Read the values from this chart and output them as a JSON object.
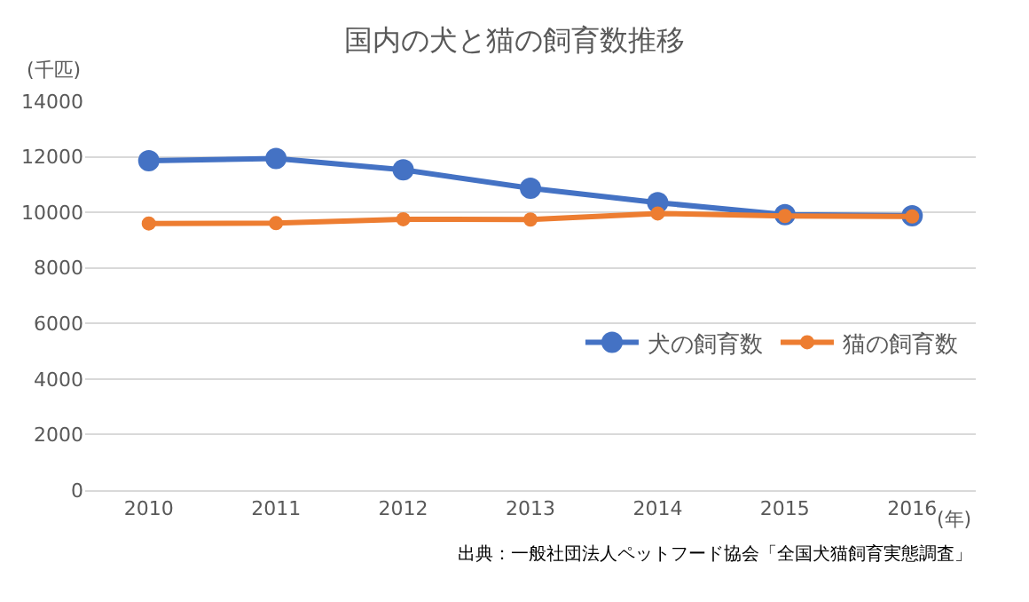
{
  "chart_data": {
    "type": "line",
    "title": "国内の犬と猫の飼育数推移",
    "ylabel": "(千匹)",
    "xlabel": "(年)",
    "categories": [
      "2010",
      "2011",
      "2012",
      "2013",
      "2014",
      "2015",
      "2016"
    ],
    "series": [
      {
        "name": "犬の飼育数",
        "color": "#4472c4",
        "values": [
          11860,
          11940,
          11530,
          10870,
          10350,
          9920,
          9880
        ]
      },
      {
        "name": "猫の飼育数",
        "color": "#ed7d31",
        "values": [
          9600,
          9610,
          9750,
          9740,
          9960,
          9870,
          9850
        ]
      }
    ],
    "ylim": [
      0,
      14000
    ],
    "yticks": [
      0,
      2000,
      4000,
      6000,
      8000,
      10000,
      12000,
      14000
    ],
    "grid": "y",
    "legend": "right",
    "marker": "circle",
    "line_style": "solid",
    "annotations": [
      "出典：一般社団法人ペットフード協会「全国犬猫飼育実態調査」"
    ]
  }
}
